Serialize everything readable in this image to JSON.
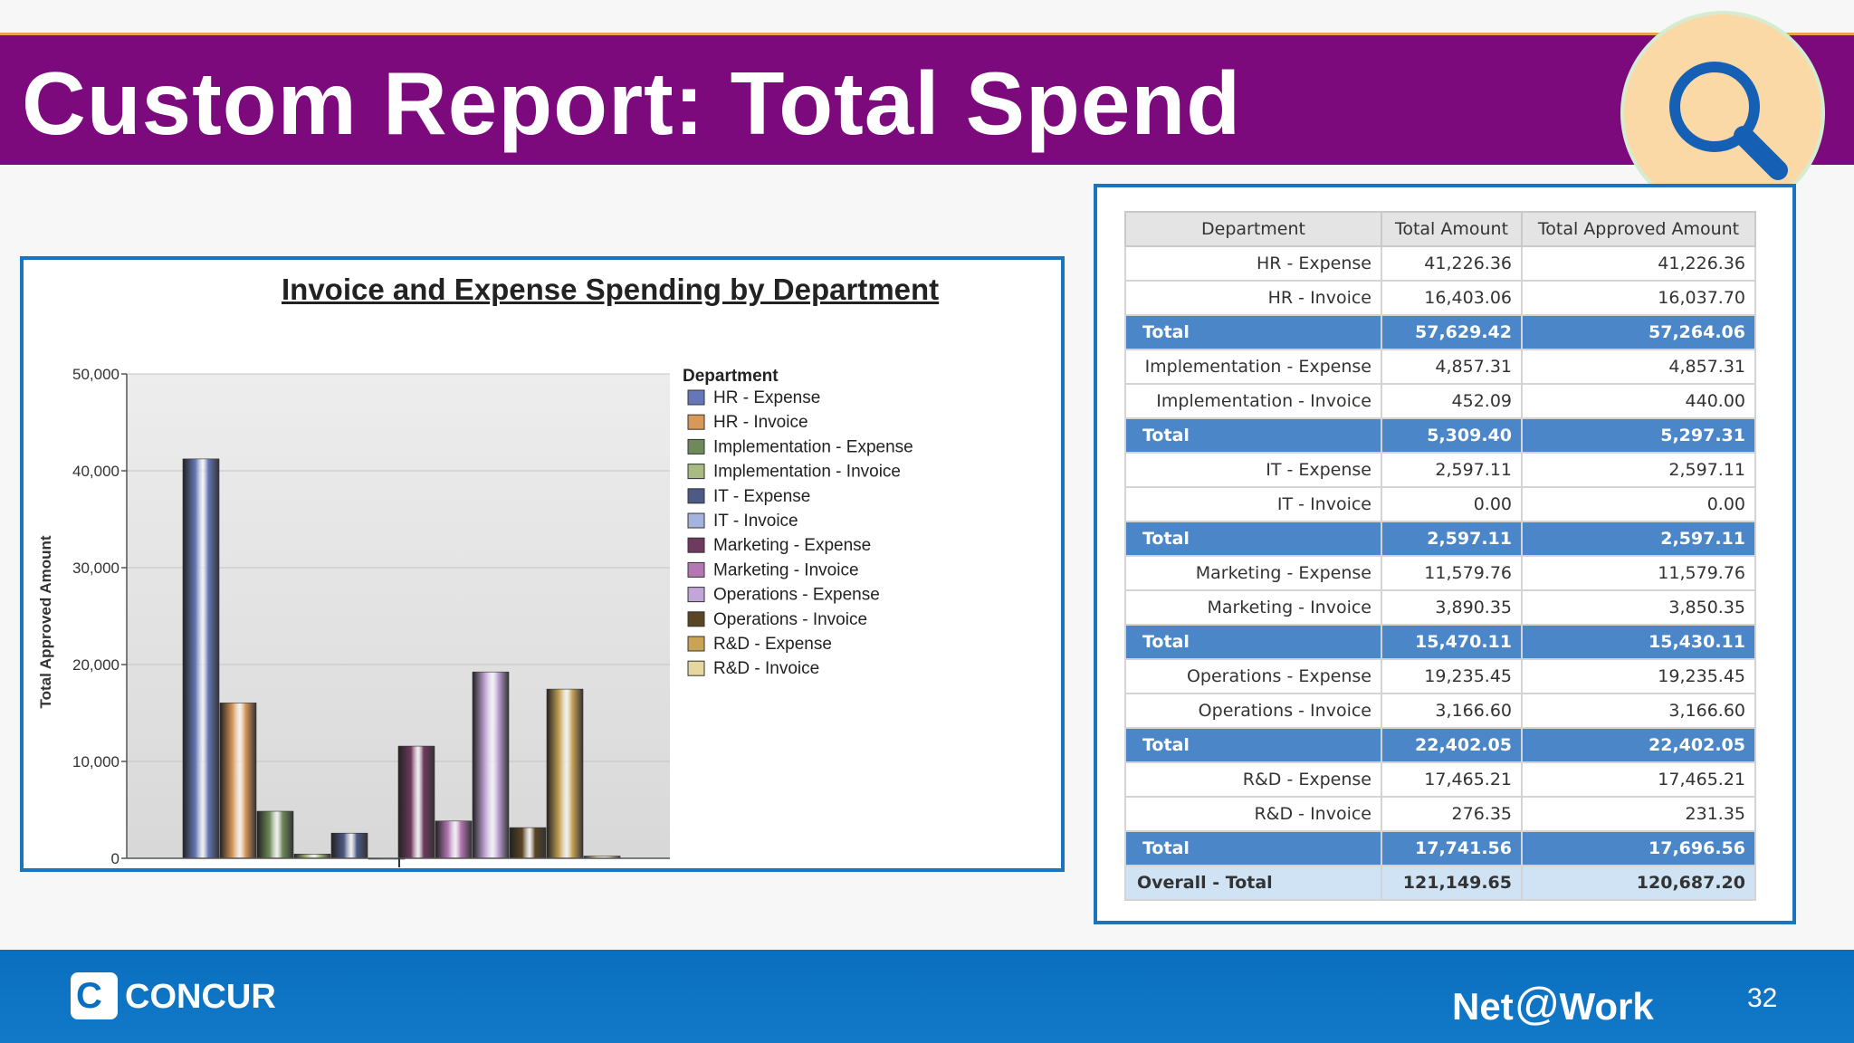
{
  "slide": {
    "title": "Custom Report: Total Spend",
    "page_number": "32",
    "logo_text": "CONCUR",
    "brand_text": "Net@Work",
    "brand_prefix": "Net",
    "brand_at": "@",
    "brand_suffix": "Work"
  },
  "colors": {
    "title_bar": "#7c0a7c",
    "footer": "#0a6fbf",
    "total_row": "#4a86c8",
    "overall_row": "#cfe3f5"
  },
  "icons": [
    "search-icon",
    "concur-logo-icon"
  ],
  "chart_data": {
    "type": "bar",
    "title": "Invoice and Expense Spending by Department",
    "xlabel": "",
    "ylabel": "Total Approved Amount",
    "ylim": [
      0,
      50000
    ],
    "yticks": [
      "0",
      "10,000",
      "20,000",
      "30,000",
      "40,000",
      "50,000"
    ],
    "grid": true,
    "legend_title": "Department",
    "legend_position": "right",
    "series": [
      {
        "name": "HR - Expense",
        "value": 41226.36,
        "color": "#6577b7"
      },
      {
        "name": "HR - Invoice",
        "value": 16037.7,
        "color": "#d89858"
      },
      {
        "name": "Implementation - Expense",
        "value": 4857.31,
        "color": "#6f8a5a"
      },
      {
        "name": "Implementation - Invoice",
        "value": 440.0,
        "color": "#a9bb82"
      },
      {
        "name": "IT - Expense",
        "value": 2597.11,
        "color": "#4e5a86"
      },
      {
        "name": "IT - Invoice",
        "value": 0.0,
        "color": "#a5b4dd"
      },
      {
        "name": "Marketing - Expense",
        "value": 11579.76,
        "color": "#6e3a5e"
      },
      {
        "name": "Marketing - Invoice",
        "value": 3850.35,
        "color": "#b577b3"
      },
      {
        "name": "Operations - Expense",
        "value": 19235.45,
        "color": "#c3a6d9"
      },
      {
        "name": "Operations - Invoice",
        "value": 3166.6,
        "color": "#5a4524"
      },
      {
        "name": "R&D - Expense",
        "value": 17465.21,
        "color": "#c9a457"
      },
      {
        "name": "R&D - Invoice",
        "value": 231.35,
        "color": "#e6d6a0"
      }
    ]
  },
  "table": {
    "headers": [
      "Department",
      "Total Amount",
      "Total Approved Amount"
    ],
    "rows": [
      {
        "type": "row",
        "dept": "HR - Expense",
        "total": "41,226.36",
        "approved": "41,226.36"
      },
      {
        "type": "row",
        "dept": "HR - Invoice",
        "total": "16,403.06",
        "approved": "16,037.70"
      },
      {
        "type": "total",
        "dept": "Total",
        "total": "57,629.42",
        "approved": "57,264.06"
      },
      {
        "type": "row",
        "dept": "Implementation - Expense",
        "total": "4,857.31",
        "approved": "4,857.31"
      },
      {
        "type": "row",
        "dept": "Implementation - Invoice",
        "total": "452.09",
        "approved": "440.00"
      },
      {
        "type": "total",
        "dept": "Total",
        "total": "5,309.40",
        "approved": "5,297.31"
      },
      {
        "type": "row",
        "dept": "IT - Expense",
        "total": "2,597.11",
        "approved": "2,597.11"
      },
      {
        "type": "row",
        "dept": "IT - Invoice",
        "total": "0.00",
        "approved": "0.00"
      },
      {
        "type": "total",
        "dept": "Total",
        "total": "2,597.11",
        "approved": "2,597.11"
      },
      {
        "type": "row",
        "dept": "Marketing - Expense",
        "total": "11,579.76",
        "approved": "11,579.76"
      },
      {
        "type": "row",
        "dept": "Marketing - Invoice",
        "total": "3,890.35",
        "approved": "3,850.35"
      },
      {
        "type": "total",
        "dept": "Total",
        "total": "15,470.11",
        "approved": "15,430.11"
      },
      {
        "type": "row",
        "dept": "Operations - Expense",
        "total": "19,235.45",
        "approved": "19,235.45"
      },
      {
        "type": "row",
        "dept": "Operations - Invoice",
        "total": "3,166.60",
        "approved": "3,166.60"
      },
      {
        "type": "total",
        "dept": "Total",
        "total": "22,402.05",
        "approved": "22,402.05"
      },
      {
        "type": "row",
        "dept": "R&D - Expense",
        "total": "17,465.21",
        "approved": "17,465.21"
      },
      {
        "type": "row",
        "dept": "R&D - Invoice",
        "total": "276.35",
        "approved": "231.35"
      },
      {
        "type": "total",
        "dept": "Total",
        "total": "17,741.56",
        "approved": "17,696.56"
      },
      {
        "type": "overall",
        "dept": "Overall - Total",
        "total": "121,149.65",
        "approved": "120,687.20"
      }
    ]
  }
}
